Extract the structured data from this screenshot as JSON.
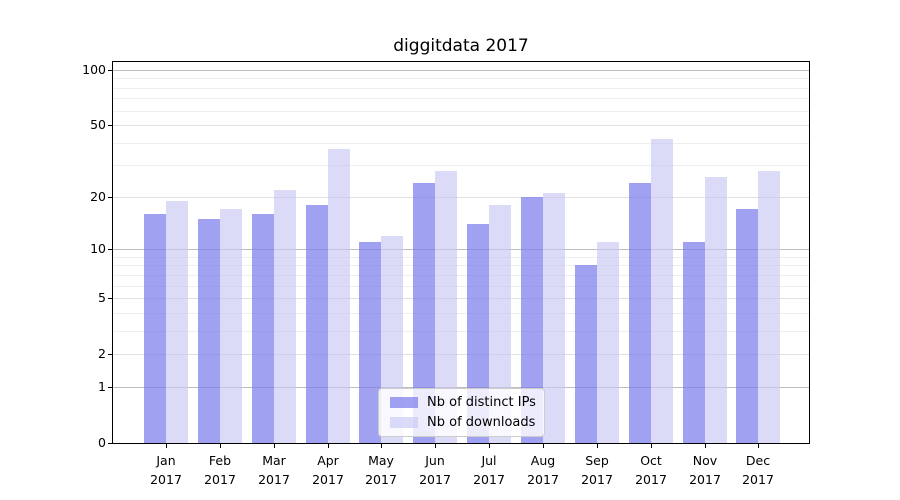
{
  "chart_data": {
    "type": "bar",
    "title": "diggitdata 2017",
    "categories": [
      "Jan",
      "Feb",
      "Mar",
      "Apr",
      "May",
      "Jun",
      "Jul",
      "Aug",
      "Sep",
      "Oct",
      "Nov",
      "Dec"
    ],
    "category_year_label": "2017",
    "series": [
      {
        "name": "Nb of distinct IPs",
        "color": "rgba(125,125,235,0.72)",
        "values": [
          16,
          15,
          16,
          18,
          11,
          24,
          14,
          20,
          8,
          24,
          11,
          17
        ]
      },
      {
        "name": "Nb of downloads",
        "color": "rgba(200,200,245,0.65)",
        "values": [
          19,
          17,
          22,
          37,
          12,
          28,
          18,
          21,
          11,
          42,
          26,
          28
        ]
      }
    ],
    "xlabel": "",
    "ylabel": "",
    "y_scale": "log1p",
    "ylim": [
      0,
      112
    ],
    "y_major_ticks": [
      0,
      1,
      2,
      5,
      10,
      20,
      50,
      100
    ],
    "y_minor_ticks": [
      3,
      4,
      6,
      7,
      8,
      9,
      30,
      40,
      60,
      70,
      80,
      90
    ],
    "grid": true,
    "legend_position": "lower center",
    "colors": {
      "grid_major_emphasis": "#bdbdbd",
      "grid_major": "#e0e0e0",
      "grid_minor": "#eeeeee",
      "axis": "#000000",
      "background": "#ffffff"
    },
    "grid_emphasis_ticks": [
      1,
      10,
      100
    ]
  }
}
